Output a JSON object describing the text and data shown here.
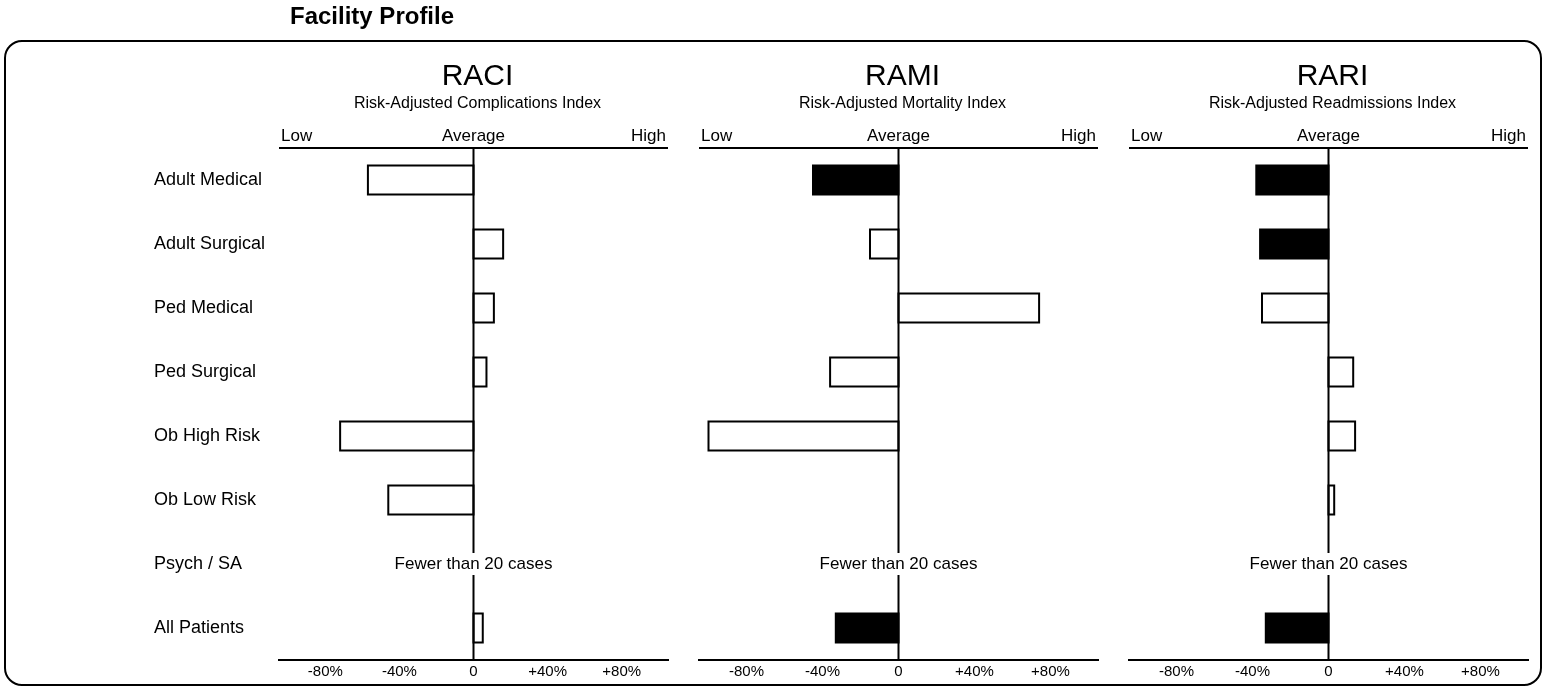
{
  "chart_data": [
    {
      "type": "bar",
      "orientation": "horizontal",
      "title": "RACI",
      "subtitle": "Risk-Adjusted Complications Index",
      "annotations": [
        "Facility Profile",
        "Low",
        "High",
        "Fewer than 20 cases"
      ],
      "categories": [
        "Adult Medical",
        "Adult Surgical",
        "Ped Medical",
        "Ped Surgical",
        "Ob High Risk",
        "Ob Low Risk",
        "Psych / SA",
        "All Patients"
      ],
      "values": [
        -57,
        16,
        11,
        7,
        -72,
        -46,
        null,
        5
      ],
      "colors": [
        "#ffffff",
        "#ffffff",
        "#ffffff",
        "#ffffff",
        "#ffffff",
        "#ffffff",
        "#ffffff",
        "#ffffff"
      ],
      "xlim": [
        -105,
        105
      ],
      "xticks": [
        {
          "value": -80,
          "label": "-80%"
        },
        {
          "value": -40,
          "label": "-40%"
        },
        {
          "value": 0,
          "label": "0"
        },
        {
          "value": 40,
          "label": "+40%"
        },
        {
          "value": 80,
          "label": "+80%"
        }
      ],
      "ref_lines": [
        {
          "axis": "x",
          "value": 0,
          "label": "Average"
        }
      ],
      "grid": false,
      "legend": false
    },
    {
      "type": "bar",
      "orientation": "horizontal",
      "title": "RAMI",
      "subtitle": "Risk-Adjusted Mortality Index",
      "annotations": [
        "Low",
        "High",
        "Fewer than 20 cases"
      ],
      "categories": [
        null,
        null,
        null,
        null,
        null,
        null,
        null,
        null
      ],
      "values": [
        -45,
        -15,
        74,
        -36,
        -100,
        null,
        null,
        -33
      ],
      "colors": [
        "#000000",
        "#ffffff",
        "#ffffff",
        "#ffffff",
        "#ffffff",
        "#ffffff",
        "#ffffff",
        "#000000"
      ],
      "xlim": [
        -105,
        105
      ],
      "xticks": [
        {
          "value": -80,
          "label": "-80%"
        },
        {
          "value": -40,
          "label": "-40%"
        },
        {
          "value": 0,
          "label": "0"
        },
        {
          "value": 40,
          "label": "+40%"
        },
        {
          "value": 80,
          "label": "+80%"
        }
      ],
      "ref_lines": [
        {
          "axis": "x",
          "value": 0,
          "label": "Average"
        }
      ],
      "grid": false,
      "legend": false
    },
    {
      "type": "bar",
      "orientation": "horizontal",
      "title": "RARI",
      "subtitle": "Risk-Adjusted Readmissions Index",
      "annotations": [
        "Low",
        "High",
        "Fewer than 20 cases"
      ],
      "categories": [
        null,
        null,
        null,
        null,
        null,
        null,
        null,
        null
      ],
      "values": [
        -38,
        -36,
        -35,
        13,
        14,
        3,
        null,
        -33
      ],
      "colors": [
        "#000000",
        "#000000",
        "#ffffff",
        "#ffffff",
        "#ffffff",
        "#ffffff",
        "#ffffff",
        "#000000"
      ],
      "xlim": [
        -105,
        105
      ],
      "xticks": [
        {
          "value": -80,
          "label": "-80%"
        },
        {
          "value": -40,
          "label": "-40%"
        },
        {
          "value": 0,
          "label": "0"
        },
        {
          "value": 40,
          "label": "+40%"
        },
        {
          "value": 80,
          "label": "+80%"
        }
      ],
      "ref_lines": [
        {
          "axis": "x",
          "value": 0,
          "label": "Average"
        }
      ],
      "grid": false,
      "legend": false
    }
  ]
}
